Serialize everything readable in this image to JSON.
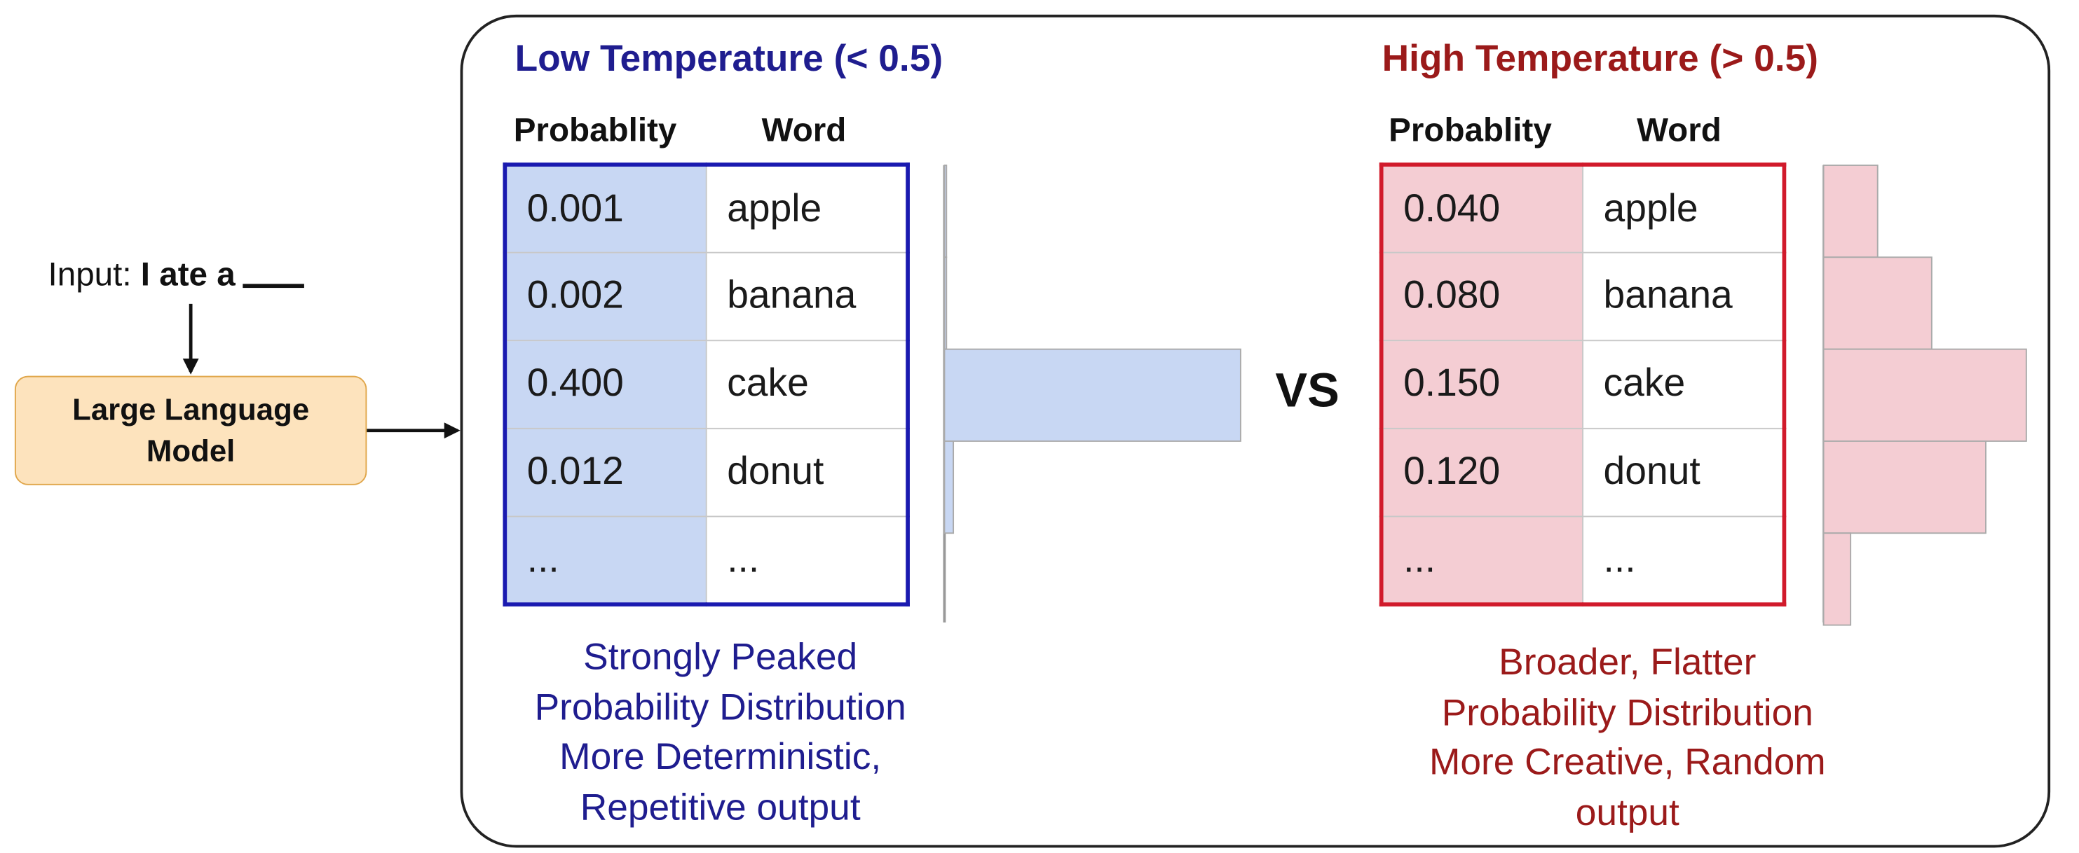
{
  "input": {
    "prefix": "Input:",
    "text": "I ate a"
  },
  "model": {
    "line1": "Large Language",
    "line2": "Model"
  },
  "vs_label": "VS",
  "low": {
    "title": "Low Temperature (< 0.5)",
    "col_prob": "Probablity",
    "col_word": "Word",
    "rows": [
      {
        "prob": "0.001",
        "word": "apple"
      },
      {
        "prob": "0.002",
        "word": "banana"
      },
      {
        "prob": "0.400",
        "word": "cake"
      },
      {
        "prob": "0.012",
        "word": "donut"
      },
      {
        "prob": "...",
        "word": "..."
      }
    ],
    "caption": [
      "Strongly Peaked",
      "Probability Distribution",
      "More Deterministic,",
      "Repetitive output"
    ],
    "bar_values": [
      0.001,
      0.002,
      0.4,
      0.012
    ],
    "color": "#1f1d8f",
    "border_color": "#1a1ab0",
    "fill_color": "#c8d7f3"
  },
  "high": {
    "title": "High Temperature (> 0.5)",
    "col_prob": "Probablity",
    "col_word": "Word",
    "rows": [
      {
        "prob": "0.040",
        "word": "apple"
      },
      {
        "prob": "0.080",
        "word": "banana"
      },
      {
        "prob": "0.150",
        "word": "cake"
      },
      {
        "prob": "0.120",
        "word": "donut"
      },
      {
        "prob": "...",
        "word": "..."
      }
    ],
    "caption": [
      "Broader, Flatter",
      "Probability Distribution",
      "More Creative, Random",
      "output"
    ],
    "bar_values": [
      0.04,
      0.08,
      0.15,
      0.12,
      0.02
    ],
    "color": "#9b1a1a",
    "border_color": "#d11a2b",
    "fill_color": "#f4cdd3"
  }
}
